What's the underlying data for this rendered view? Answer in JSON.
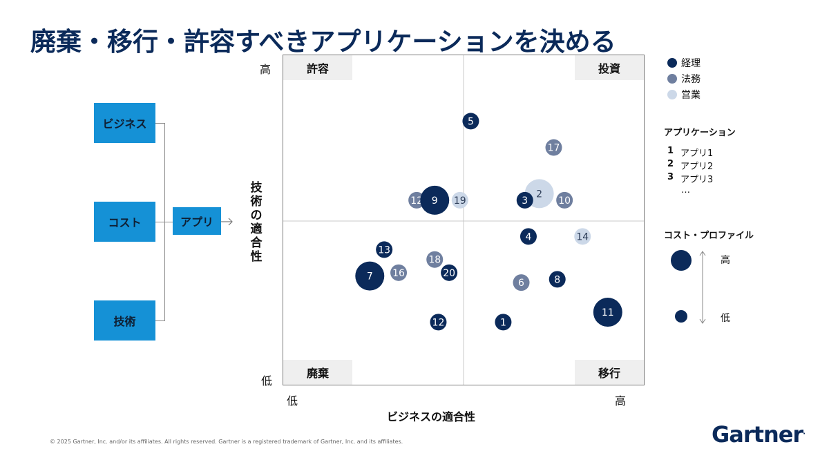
{
  "title": "廃棄・移行・許容すべきアプリケーションを決める",
  "inputs": {
    "business": "ビジネス",
    "cost": "コスト",
    "tech": "技術",
    "app": "アプリ"
  },
  "colors": {
    "accent": "#1591d6",
    "keiri": "#0b2a5a",
    "houmu": "#6f7f9f",
    "eigyou": "#ccd8e8"
  },
  "chart_data": {
    "type": "scatter",
    "xlabel": "ビジネスの適合性",
    "ylabel": "技術の適合性",
    "x_low": "低",
    "x_high": "高",
    "y_low": "低",
    "y_high": "高",
    "xlim": [
      0,
      100
    ],
    "ylim": [
      0,
      100
    ],
    "quadrants": {
      "top_left": "許容",
      "top_right": "投資",
      "bottom_left": "廃棄",
      "bottom_right": "移行"
    },
    "series": [
      {
        "name": "経理",
        "color": "#0b2a5a",
        "points": [
          {
            "label": "5",
            "x": 52,
            "y": 80,
            "size": "small"
          },
          {
            "label": "9",
            "x": 42,
            "y": 56,
            "size": "large"
          },
          {
            "label": "3",
            "x": 67,
            "y": 56,
            "size": "small"
          },
          {
            "label": "4",
            "x": 68,
            "y": 45,
            "size": "small"
          },
          {
            "label": "13",
            "x": 28,
            "y": 41,
            "size": "small"
          },
          {
            "label": "20",
            "x": 46,
            "y": 34,
            "size": "small"
          },
          {
            "label": "7",
            "x": 24,
            "y": 33,
            "size": "large"
          },
          {
            "label": "8",
            "x": 76,
            "y": 32,
            "size": "small"
          },
          {
            "label": "12",
            "x": 43,
            "y": 19,
            "size": "small"
          },
          {
            "label": "1",
            "x": 61,
            "y": 19,
            "size": "small"
          },
          {
            "label": "11",
            "x": 90,
            "y": 22,
            "size": "large"
          }
        ]
      },
      {
        "name": "法務",
        "color": "#6f7f9f",
        "points": [
          {
            "label": "17",
            "x": 75,
            "y": 72,
            "size": "small"
          },
          {
            "label": "12",
            "x": 37,
            "y": 56,
            "size": "small"
          },
          {
            "label": "10",
            "x": 78,
            "y": 56,
            "size": "small"
          },
          {
            "label": "18",
            "x": 42,
            "y": 38,
            "size": "small"
          },
          {
            "label": "16",
            "x": 32,
            "y": 34,
            "size": "small"
          },
          {
            "label": "6",
            "x": 66,
            "y": 31,
            "size": "small"
          }
        ]
      },
      {
        "name": "営業",
        "color": "#ccd8e8",
        "points": [
          {
            "label": "2",
            "x": 71,
            "y": 58,
            "size": "large"
          },
          {
            "label": "19",
            "x": 49,
            "y": 56,
            "size": "small"
          },
          {
            "label": "14",
            "x": 83,
            "y": 45,
            "size": "small"
          }
        ]
      }
    ]
  },
  "legend": {
    "series": [
      {
        "name": "経理",
        "color": "#0b2a5a"
      },
      {
        "name": "法務",
        "color": "#6f7f9f"
      },
      {
        "name": "営業",
        "color": "#ccd8e8"
      }
    ],
    "apps_title": "アプリケーション",
    "apps": [
      {
        "num": "1",
        "name": "アプリ1"
      },
      {
        "num": "2",
        "name": "アプリ2"
      },
      {
        "num": "3",
        "name": "アプリ3"
      }
    ],
    "apps_more": "…",
    "cost_title": "コスト・プロファイル",
    "cost_high": "高",
    "cost_low": "低"
  },
  "footer": "© 2025 Gartner, Inc. and/or its affiliates. All rights reserved. Gartner is a registered trademark of Gartner, Inc. and its affiliates.",
  "logo": "Gartner"
}
